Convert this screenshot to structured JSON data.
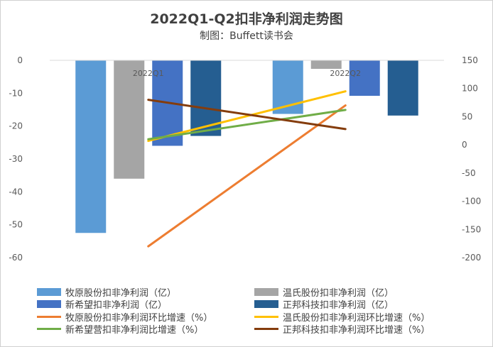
{
  "chart_data": {
    "type": "bar",
    "title": "2022Q1-Q2扣非净利润走势图",
    "subtitle": "制图：Buffett读书会",
    "categories": [
      "2022Q1",
      "2022Q2"
    ],
    "left_axis": {
      "ylim": [
        -60,
        0
      ],
      "ticks": [
        "0",
        "-10",
        "-20",
        "-30",
        "-40",
        "-50",
        "-60"
      ],
      "tick_values": [
        0,
        -10,
        -20,
        -30,
        -40,
        -50,
        -60
      ]
    },
    "right_axis": {
      "ylim": [
        -200,
        150
      ],
      "ticks": [
        "150",
        "100",
        "50",
        "0",
        "-50",
        "-100",
        "-150",
        "-200"
      ],
      "tick_values": [
        150,
        100,
        50,
        0,
        -50,
        -100,
        -150,
        -200
      ]
    },
    "bar_series": [
      {
        "name": "牧原股份扣非净利润（亿）",
        "color": "#5b9bd5",
        "values": [
          -52.5,
          -16.3
        ]
      },
      {
        "name": "温氏股份扣非净利润（亿）",
        "color": "#a5a5a5",
        "values": [
          -36.0,
          -2.6
        ]
      },
      {
        "name": "新希望扣非净利润（亿）",
        "color": "#4472c4",
        "values": [
          -26.0,
          -10.8
        ]
      },
      {
        "name": "正邦科技扣非净利润（亿）",
        "color": "#255e91",
        "values": [
          -23.0,
          -16.8
        ]
      }
    ],
    "line_series": [
      {
        "name": "牧原股份扣非净利润环比增速（%）",
        "color": "#ed7d31",
        "values": [
          -180,
          70
        ]
      },
      {
        "name": "温氏股份扣非净利润环比增速（%）",
        "color": "#ffc000",
        "values": [
          7,
          95
        ]
      },
      {
        "name": "新希望营扣非净利润比增速（%）",
        "color": "#70ad47",
        "values": [
          10,
          62
        ]
      },
      {
        "name": "正邦科技扣非净利润环比增速（%）",
        "color": "#843c0c",
        "values": [
          80,
          28
        ]
      }
    ],
    "grid": false,
    "legend_position": "bottom"
  }
}
